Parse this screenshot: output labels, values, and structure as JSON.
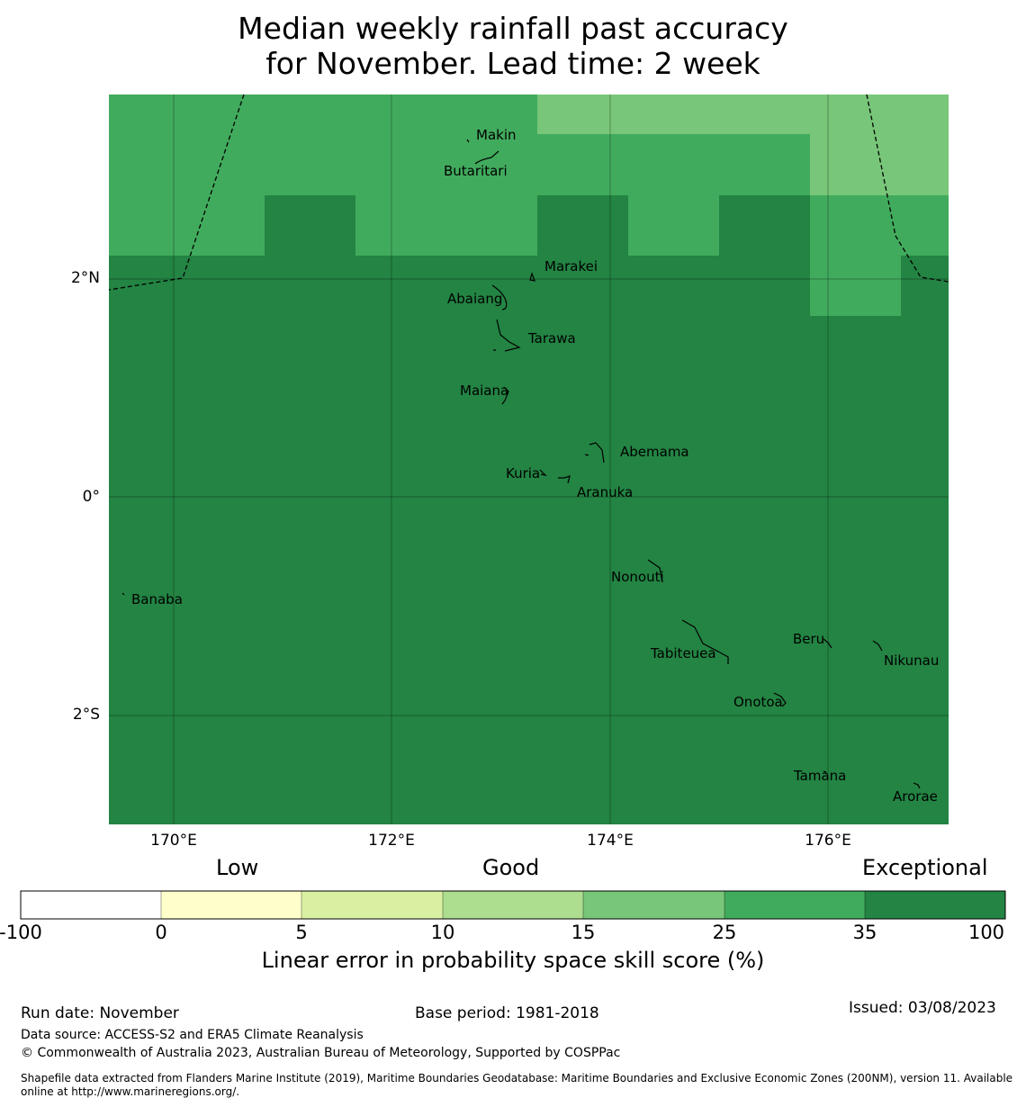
{
  "title": {
    "line1": "Median weekly rainfall past accuracy",
    "line2": "for November. Lead time: 2 week"
  },
  "map": {
    "lat_labels": [
      "2°N",
      "0°",
      "2°S"
    ],
    "lon_labels": [
      "170°E",
      "172°E",
      "174°E",
      "176°E"
    ],
    "islands": [
      "Makin",
      "Butaritari",
      "Marakei",
      "Abaiang",
      "Tarawa",
      "Maiana",
      "Abemama",
      "Kuria",
      "Aranuka",
      "Nonouti",
      "Banaba",
      "Beru",
      "Nikunau",
      "Tabiteuea",
      "Onotoa",
      "Tamana",
      "Arorae"
    ],
    "colors": {
      "exceptional": "#238443",
      "good_high": "#41ab5d",
      "good_mid": "#78c679"
    }
  },
  "colorbar": {
    "category_labels": [
      "Low",
      "Good",
      "Exceptional"
    ],
    "ticks": [
      "-100",
      "0",
      "5",
      "10",
      "15",
      "25",
      "35",
      "100"
    ],
    "colors": [
      "#ffffff",
      "#ffffcc",
      "#d9f0a3",
      "#addd8e",
      "#78c679",
      "#41ab5d",
      "#238443"
    ],
    "title": "Linear error in probability space skill score (%)"
  },
  "footer": {
    "run_date": "Run date: November",
    "base_period": "Base period: 1981-2018",
    "issued": "Issued: 03/08/2023",
    "data_source": "Data source: ACCESS-S2 and ERA5 Climate Reanalysis",
    "copyright": "© Commonwealth of Australia 2023, Australian Bureau of Meteorology, Supported by COSPPac",
    "shapefile": "Shapefile data extracted from Flanders Marine Institute (2019), Maritime Boundaries Geodatabase: Maritime Boundaries and Exclusive Economic Zones (200NM), version 11. Available online at http://www.marineregions.org/."
  }
}
